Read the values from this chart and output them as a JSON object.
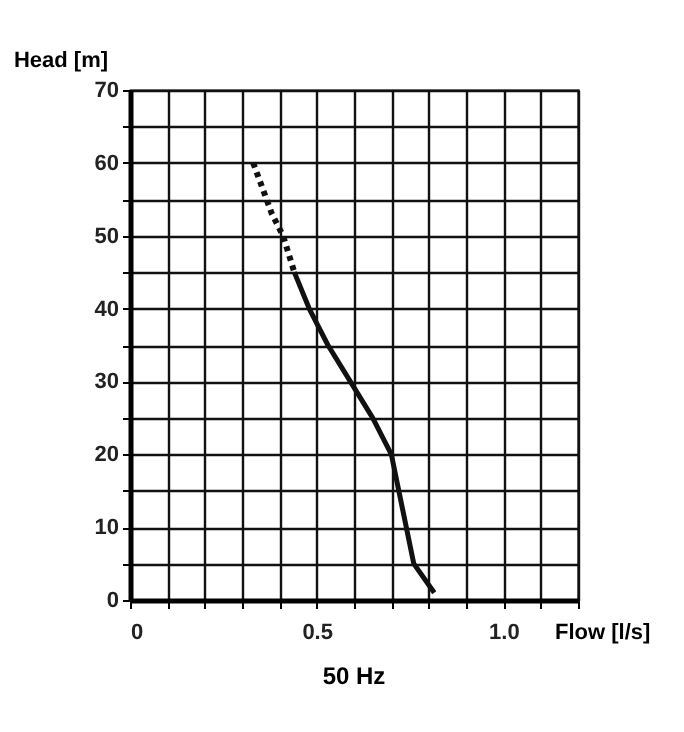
{
  "chart_data": {
    "type": "line",
    "title": "50 Hz",
    "xlabel": "Flow [l/s]",
    "ylabel": "Head [m]",
    "xlim": [
      0,
      1.2
    ],
    "ylim": [
      0,
      70
    ],
    "xticks": [
      0,
      {
        "value": 0.1,
        "label": null
      },
      {
        "value": 0.2,
        "label": null
      },
      {
        "value": 0.3,
        "label": null
      },
      {
        "value": 0.4,
        "label": null
      },
      {
        "value": 0.5,
        "label": "0.5"
      },
      {
        "value": 0.6,
        "label": null
      },
      {
        "value": 0.7,
        "label": null
      },
      {
        "value": 0.8,
        "label": null
      },
      {
        "value": 0.9,
        "label": null
      },
      {
        "value": 1.0,
        "label": "1.0"
      },
      {
        "value": 1.1,
        "label": null
      },
      {
        "value": 1.2,
        "label": null
      }
    ],
    "yticks": [
      0,
      {
        "value": 5,
        "label": null
      },
      10,
      {
        "value": 15,
        "label": null
      },
      20,
      {
        "value": 25,
        "label": null
      },
      30,
      {
        "value": 35,
        "label": null
      },
      40,
      {
        "value": 45,
        "label": null
      },
      50,
      {
        "value": 55,
        "label": null
      },
      60,
      {
        "value": 65,
        "label": null
      },
      70
    ],
    "grid": true,
    "marker": "none",
    "series": [
      {
        "color": "#111111",
        "line_style": "dotted",
        "x": [
          0.33,
          0.38,
          0.41,
          0.44
        ],
        "values": [
          60,
          53,
          50,
          45
        ]
      },
      {
        "color": "#111111",
        "line_style": "solid",
        "x": [
          0.44,
          0.48,
          0.53,
          0.59,
          0.65,
          0.7,
          0.72,
          0.76,
          0.815
        ],
        "values": [
          45,
          40,
          35,
          30,
          25,
          20,
          15,
          5,
          1
        ]
      }
    ]
  }
}
